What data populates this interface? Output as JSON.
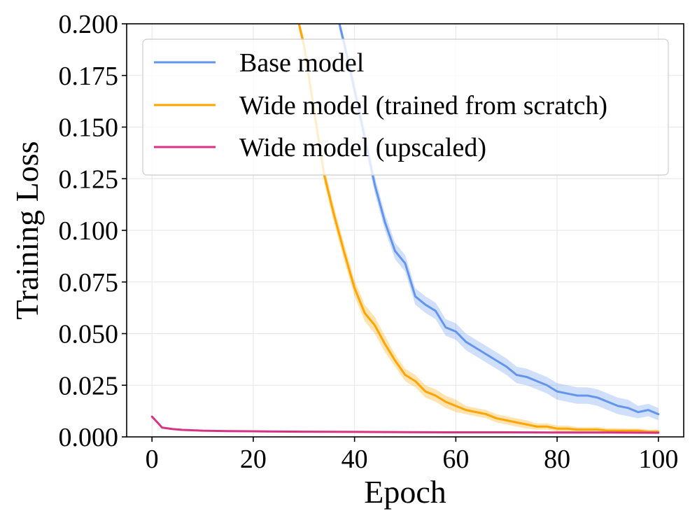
{
  "chart_data": {
    "type": "line",
    "xlabel": "Epoch",
    "ylabel": "Training Loss",
    "xlim": [
      -5,
      105
    ],
    "ylim": [
      0,
      0.2
    ],
    "grid": true,
    "legend_position": "top-right",
    "xticks": [
      0,
      20,
      40,
      60,
      80,
      100
    ],
    "xtick_labels": [
      "0",
      "20",
      "40",
      "60",
      "80",
      "100"
    ],
    "yticks": [
      0,
      0.025,
      0.05,
      0.075,
      0.1,
      0.125,
      0.15,
      0.175,
      0.2
    ],
    "ytick_labels": [
      "0.000",
      "0.025",
      "0.050",
      "0.075",
      "0.100",
      "0.125",
      "0.150",
      "0.175",
      "0.200"
    ],
    "series": [
      {
        "name": "Base model",
        "color": "#6495ED",
        "x": [
          37,
          38,
          40,
          42,
          44,
          46,
          48,
          50,
          52,
          54,
          56,
          58,
          60,
          62,
          64,
          66,
          68,
          70,
          72,
          74,
          76,
          78,
          80,
          82,
          84,
          86,
          88,
          90,
          92,
          94,
          96,
          98,
          100
        ],
        "y": [
          0.2,
          0.19,
          0.168,
          0.145,
          0.122,
          0.104,
          0.09,
          0.084,
          0.068,
          0.064,
          0.061,
          0.053,
          0.051,
          0.046,
          0.043,
          0.04,
          0.037,
          0.034,
          0.03,
          0.029,
          0.027,
          0.025,
          0.022,
          0.021,
          0.02,
          0.02,
          0.019,
          0.017,
          0.015,
          0.014,
          0.012,
          0.013,
          0.011
        ],
        "band": [
          0.003,
          0.003,
          0.004,
          0.004,
          0.004,
          0.004,
          0.004,
          0.004,
          0.004,
          0.004,
          0.004,
          0.004,
          0.004,
          0.004,
          0.004,
          0.004,
          0.004,
          0.004,
          0.004,
          0.004,
          0.004,
          0.004,
          0.004,
          0.004,
          0.004,
          0.004,
          0.004,
          0.004,
          0.004,
          0.004,
          0.003,
          0.003,
          0.003
        ]
      },
      {
        "name": "Wide model (trained from scratch)",
        "color": "#FFA500",
        "x": [
          29,
          30,
          32,
          34,
          36,
          38,
          40,
          42,
          44,
          46,
          48,
          50,
          52,
          54,
          56,
          58,
          60,
          62,
          64,
          66,
          68,
          70,
          72,
          74,
          76,
          78,
          80,
          82,
          84,
          86,
          88,
          90,
          92,
          94,
          96,
          98,
          100
        ],
        "y": [
          0.2,
          0.19,
          0.158,
          0.127,
          0.107,
          0.089,
          0.072,
          0.06,
          0.054,
          0.045,
          0.037,
          0.03,
          0.027,
          0.022,
          0.02,
          0.017,
          0.015,
          0.013,
          0.012,
          0.011,
          0.009,
          0.008,
          0.007,
          0.006,
          0.005,
          0.005,
          0.004,
          0.004,
          0.0035,
          0.0035,
          0.0035,
          0.003,
          0.003,
          0.003,
          0.003,
          0.0025,
          0.0025
        ],
        "band": [
          0.003,
          0.003,
          0.004,
          0.004,
          0.004,
          0.004,
          0.004,
          0.004,
          0.004,
          0.004,
          0.003,
          0.003,
          0.003,
          0.003,
          0.003,
          0.003,
          0.003,
          0.002,
          0.002,
          0.002,
          0.002,
          0.002,
          0.002,
          0.002,
          0.0015,
          0.0015,
          0.0015,
          0.0015,
          0.0012,
          0.0012,
          0.0012,
          0.0012,
          0.0012,
          0.001,
          0.001,
          0.001,
          0.001
        ]
      },
      {
        "name": "Wide model (upscaled)",
        "color": "#D63384",
        "x": [
          0,
          1,
          2,
          4,
          6,
          10,
          15,
          20,
          30,
          40,
          50,
          60,
          70,
          80,
          90,
          100
        ],
        "y": [
          0.0098,
          0.0072,
          0.0045,
          0.0038,
          0.0034,
          0.003,
          0.0028,
          0.0027,
          0.0025,
          0.0024,
          0.0023,
          0.0022,
          0.0022,
          0.0021,
          0.0021,
          0.002
        ],
        "band": [
          0.0003,
          0.0003,
          0.0003,
          0.0002,
          0.0002,
          0.0002,
          0.0002,
          0.0002,
          0.0002,
          0.0002,
          0.0002,
          0.0002,
          0.0002,
          0.0002,
          0.0002,
          0.0002
        ]
      }
    ]
  }
}
